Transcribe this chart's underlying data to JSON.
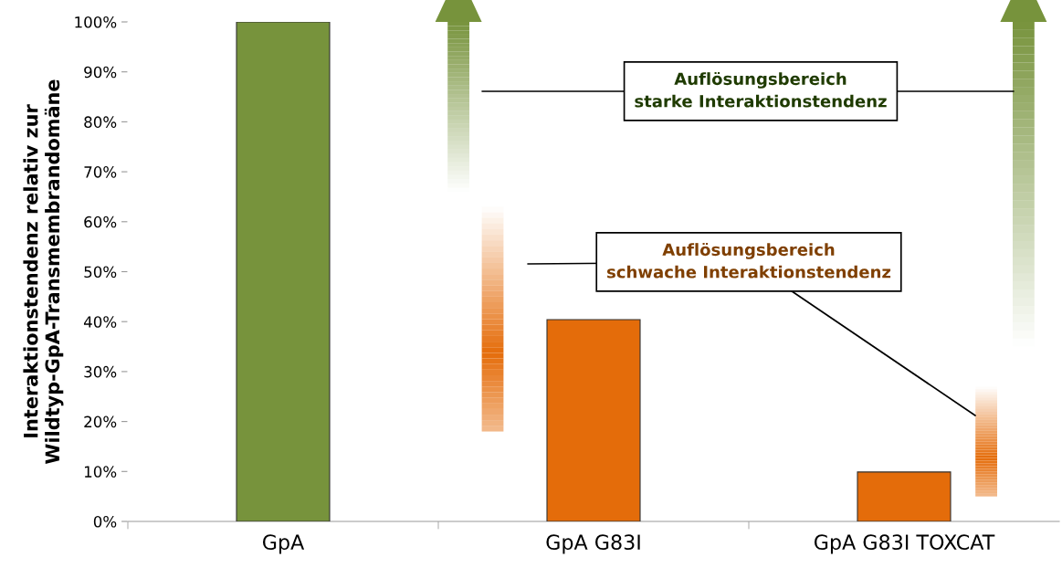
{
  "chart_data": {
    "type": "bar",
    "categories": [
      "GpA",
      "GpA G83I",
      "GpA G83I TOXCAT"
    ],
    "values": [
      100,
      40.4,
      9.9
    ],
    "colors": [
      "#77933c",
      "#e46c0a",
      "#e46c0a"
    ],
    "ylabel": "Interaktionstendenz relativ zur\nWildtyp-GpA-Transmembrandomäne",
    "ylim": [
      0,
      100
    ],
    "yticks": [
      {
        "value": 0,
        "label": "0%"
      },
      {
        "value": 10,
        "label": "10%"
      },
      {
        "value": 20,
        "label": "20%"
      },
      {
        "value": 30,
        "label": "30%"
      },
      {
        "value": 40,
        "label": "40%"
      },
      {
        "value": 50,
        "label": "50%"
      },
      {
        "value": 60,
        "label": "60%"
      },
      {
        "value": 70,
        "label": "70%"
      },
      {
        "value": 80,
        "label": "80%"
      },
      {
        "value": 90,
        "label": "90%"
      },
      {
        "value": 100,
        "label": "100%"
      }
    ],
    "annotations": [
      "Auflösungsbereich\nstarke Interaktionstendenz",
      "Auflösungsbereich\nschwache Interaktionstendenz"
    ],
    "grid": false,
    "legend": false
  }
}
